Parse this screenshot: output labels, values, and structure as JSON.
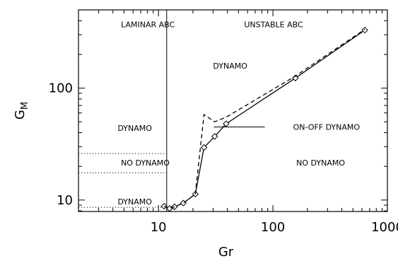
{
  "chart_data": {
    "type": "line",
    "xlabel": "Gr",
    "ylabel_main": "G",
    "ylabel_sub": "M",
    "xscale": "log",
    "yscale": "log",
    "xlim": [
      2,
      1000
    ],
    "ylim": [
      7.9,
      500
    ],
    "xticks": [
      {
        "value": 10,
        "label": "10"
      },
      {
        "value": 100,
        "label": "100"
      },
      {
        "value": 1000,
        "label": "1000"
      }
    ],
    "yticks": [
      {
        "value": 10,
        "label": "10"
      },
      {
        "value": 100,
        "label": "100"
      }
    ],
    "series": [
      {
        "style": "solid",
        "marker": "diamond",
        "x": [
          11.2,
          12.5,
          13.8,
          16.5,
          21.0,
          25.0,
          31.0,
          39.0,
          157.0,
          635.0
        ],
        "y": [
          8.8,
          8.4,
          8.7,
          9.4,
          11.3,
          29.5,
          37.0,
          48.0,
          123.0,
          330.0
        ]
      },
      {
        "style": "dashed",
        "marker": "none",
        "x": [
          11.2,
          12.5,
          13.8,
          16.5,
          21.0,
          25.0,
          31.0,
          39.0,
          157.0,
          635.0
        ],
        "y": [
          8.8,
          8.4,
          8.7,
          9.4,
          11.3,
          58.0,
          50.0,
          55.0,
          128.0,
          335.0
        ]
      }
    ],
    "vertical_line": {
      "x": 11.8
    },
    "dotted_lines": [
      {
        "y": 26.0,
        "x_end": 11.8
      },
      {
        "y": 17.5,
        "x_end": 11.8
      },
      {
        "y": 8.6,
        "x_end": 11.8
      }
    ],
    "annotations": [
      {
        "text": "LAMINAR ABC",
        "x": 4.7,
        "y": 370
      },
      {
        "text": "UNSTABLE ABC",
        "x": 56,
        "y": 370
      },
      {
        "text": "DYNAMO",
        "x": 30,
        "y": 158
      },
      {
        "text": "DYNAMO",
        "x": 4.4,
        "y": 44
      },
      {
        "text": "NO DYNAMO",
        "x": 4.7,
        "y": 21.5
      },
      {
        "text": "NO DYNAMO",
        "x": 160,
        "y": 21.5
      },
      {
        "text": "DYNAMO",
        "x": 4.4,
        "y": 9.7
      },
      {
        "text": "ON-OFF DYNAMO",
        "x": 150,
        "y": 45
      }
    ],
    "pointer": {
      "x_from": 30.5,
      "x_to": 85,
      "y": 45
    }
  }
}
